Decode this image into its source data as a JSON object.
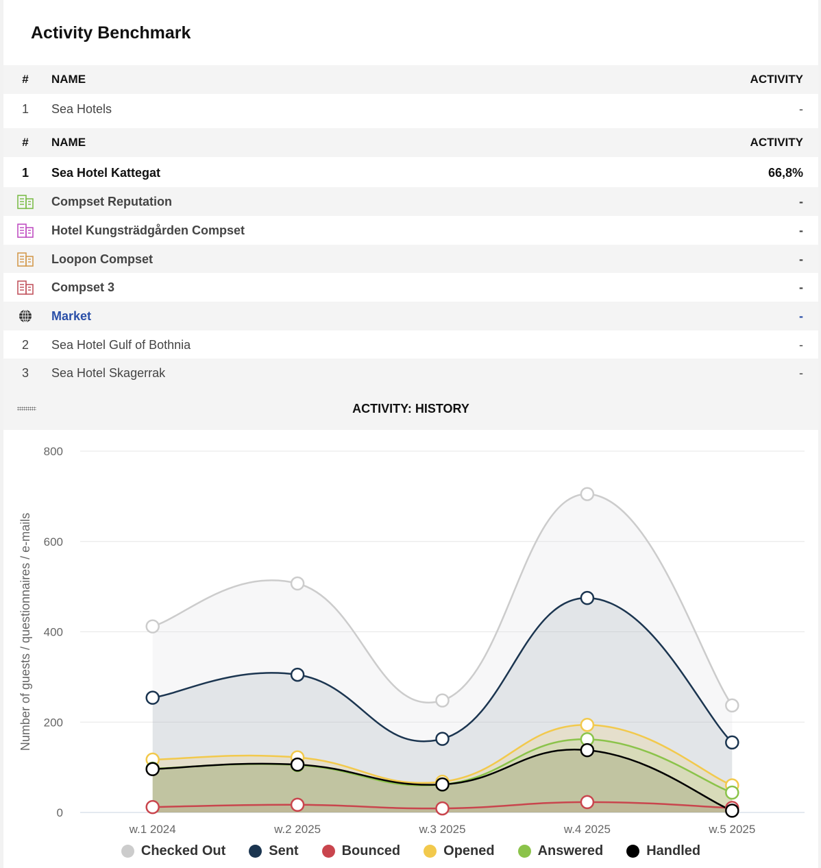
{
  "title": "Activity Benchmark",
  "table1": {
    "headers": {
      "idx": "#",
      "name": "NAME",
      "activity": "ACTIVITY"
    },
    "rows": [
      {
        "idx": "1",
        "name": "Sea Hotels",
        "activity": "-"
      }
    ]
  },
  "table2": {
    "headers": {
      "idx": "#",
      "name": "NAME",
      "activity": "ACTIVITY"
    },
    "self": {
      "idx": "1",
      "name": "Sea Hotel Kattegat",
      "activity": "66,8%"
    },
    "compsets": [
      {
        "name": "Compset Reputation",
        "activity": "-",
        "color": "#7dbd4a",
        "icon": "building-icon"
      },
      {
        "name": "Hotel Kungsträdgården Compset",
        "activity": "-",
        "color": "#c04ec2",
        "icon": "building-icon"
      },
      {
        "name": "Loopon Compset",
        "activity": "-",
        "color": "#d49a4e",
        "icon": "building-icon"
      },
      {
        "name": "Compset 3",
        "activity": "-",
        "color": "#c2545e",
        "icon": "building-icon"
      }
    ],
    "market": {
      "name": "Market",
      "activity": "-",
      "icon": "globe-icon",
      "color": "#2a4fa8"
    },
    "others": [
      {
        "idx": "2",
        "name": "Sea Hotel Gulf of Bothnia",
        "activity": "-"
      },
      {
        "idx": "3",
        "name": "Sea Hotel Skagerrak",
        "activity": "-"
      }
    ]
  },
  "history": {
    "title": "ACTIVITY: HISTORY"
  },
  "chart_data": {
    "type": "area",
    "title": "ACTIVITY: HISTORY",
    "xlabel": "",
    "ylabel": "Number of guests / questionnaires / e-mails",
    "categories": [
      "w.1 2024",
      "w.2 2025",
      "w.3 2025",
      "w.4 2025",
      "w.5 2025"
    ],
    "ylim": [
      0,
      800
    ],
    "yticks": [
      0,
      200,
      400,
      600,
      800
    ],
    "grid": true,
    "legend_position": "bottom",
    "series": [
      {
        "name": "Checked Out",
        "color": "#cccccc",
        "values": [
          412,
          507,
          248,
          705,
          237
        ]
      },
      {
        "name": "Sent",
        "color": "#1b3550",
        "values": [
          254,
          305,
          163,
          475,
          155
        ]
      },
      {
        "name": "Bounced",
        "color": "#c9454d",
        "values": [
          12,
          17,
          9,
          23,
          10
        ]
      },
      {
        "name": "Opened",
        "color": "#f2c94c",
        "values": [
          117,
          122,
          68,
          194,
          60
        ]
      },
      {
        "name": "Answered",
        "color": "#8bc34a",
        "values": [
          97,
          105,
          62,
          162,
          44
        ]
      },
      {
        "name": "Handled",
        "color": "#000000",
        "values": [
          96,
          106,
          62,
          138,
          4
        ]
      }
    ]
  }
}
